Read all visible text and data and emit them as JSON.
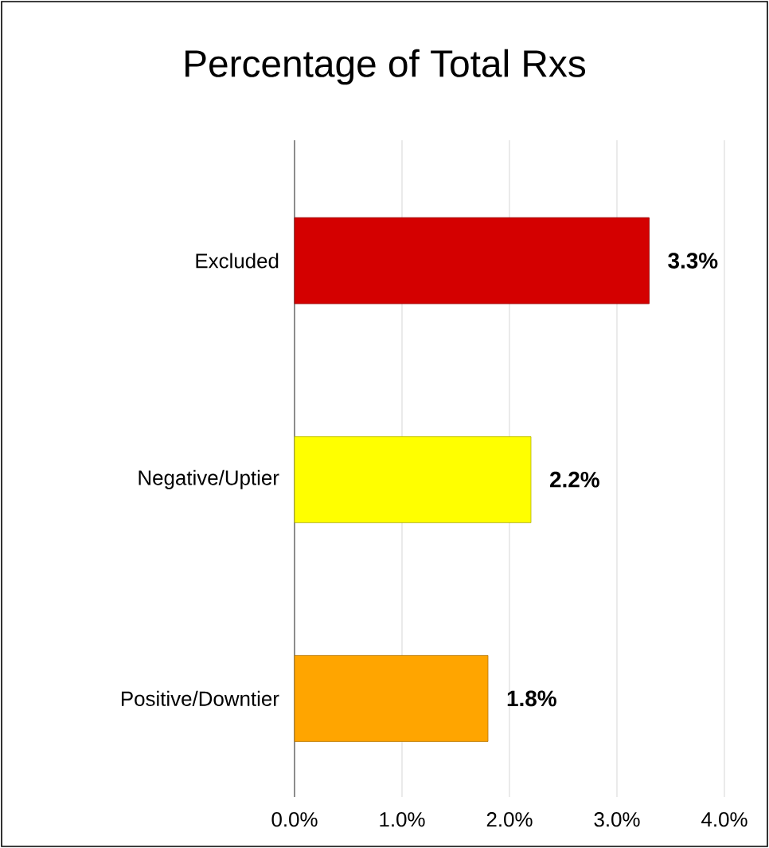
{
  "chart_data": {
    "type": "bar",
    "orientation": "horizontal",
    "title": "Percentage of Total Rxs",
    "categories": [
      "Excluded",
      "Negative/Uptier",
      "Positive/Downtier"
    ],
    "values": [
      3.3,
      2.2,
      1.8
    ],
    "colors": [
      "#d40000",
      "#ffff00",
      "#ffa500"
    ],
    "value_labels": [
      "3.3%",
      "2.2%",
      "1.8%"
    ],
    "xlim": [
      0,
      4
    ],
    "xticks": [
      {
        "value": 0,
        "label": "0.0%"
      },
      {
        "value": 1,
        "label": "1.0%"
      },
      {
        "value": 2,
        "label": "2.0%"
      },
      {
        "value": 3,
        "label": "3.0%"
      },
      {
        "value": 4,
        "label": "4.0%"
      }
    ],
    "grid": "x"
  }
}
